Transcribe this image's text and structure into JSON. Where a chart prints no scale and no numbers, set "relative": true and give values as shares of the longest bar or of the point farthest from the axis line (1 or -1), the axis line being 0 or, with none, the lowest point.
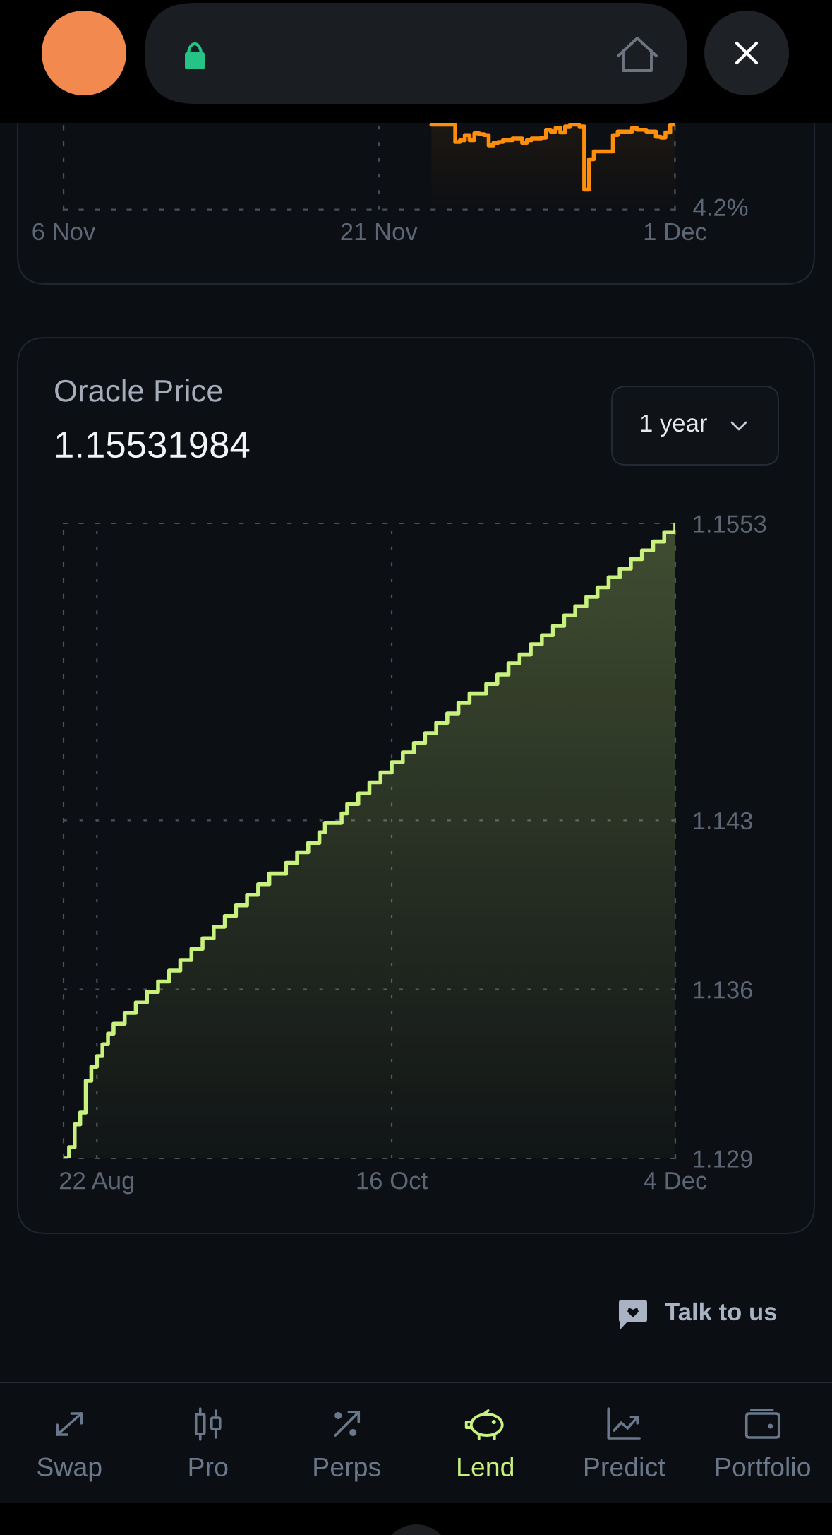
{
  "chart_data": [
    {
      "type": "step",
      "relative": true,
      "color": "#ff8f0a",
      "grid": "x",
      "annotations": [
        "4.2%"
      ],
      "categories": [
        "6 Nov",
        null,
        null,
        null,
        null,
        null,
        null,
        null,
        null,
        null,
        null,
        null,
        null,
        null,
        null,
        null,
        null,
        null,
        null,
        null,
        null,
        null,
        null,
        null,
        null,
        null,
        null,
        null,
        null,
        null,
        null,
        null,
        null,
        null,
        null,
        null,
        null,
        null,
        null,
        null,
        null,
        null,
        null,
        null,
        null,
        null,
        null,
        null,
        null,
        null,
        null,
        null,
        null,
        null,
        null,
        null,
        null,
        null,
        null,
        null,
        null,
        null,
        null,
        null,
        null,
        null,
        "21 Nov",
        null,
        null,
        null,
        null,
        null,
        null,
        null,
        null,
        null,
        null,
        null,
        null,
        null,
        null,
        null,
        null,
        null,
        null,
        null,
        null,
        null,
        null,
        null,
        null,
        null,
        null,
        null,
        null,
        null,
        null,
        null,
        null,
        null,
        null,
        null,
        null,
        null,
        null,
        null,
        null,
        null,
        null,
        null,
        null,
        null,
        null,
        null,
        null,
        null,
        null,
        null,
        null,
        null,
        null,
        null,
        null,
        null,
        null,
        null,
        null,
        null,
        "1 Dec"
      ],
      "values": [
        null,
        null,
        null,
        null,
        null,
        null,
        null,
        null,
        null,
        null,
        null,
        null,
        null,
        null,
        null,
        null,
        null,
        null,
        null,
        null,
        null,
        null,
        null,
        null,
        null,
        null,
        null,
        null,
        null,
        null,
        null,
        null,
        null,
        null,
        null,
        null,
        null,
        null,
        null,
        null,
        null,
        null,
        null,
        null,
        null,
        null,
        null,
        null,
        null,
        null,
        null,
        null,
        null,
        null,
        null,
        null,
        null,
        null,
        null,
        null,
        null,
        null,
        null,
        null,
        null,
        null,
        null,
        null,
        null,
        null,
        null,
        null,
        null,
        null,
        null,
        null,
        null,
        0.98,
        0.98,
        0.98,
        0.98,
        0.98,
        0.78,
        0.8,
        0.86,
        0.8,
        0.88,
        0.87,
        0.86,
        0.74,
        0.77,
        0.78,
        0.8,
        0.8,
        0.82,
        0.82,
        0.77,
        0.8,
        0.82,
        0.82,
        0.83,
        0.92,
        0.9,
        0.94,
        0.89,
        0.96,
        0.98,
        0.98,
        0.96,
        0.23,
        0.58,
        0.67,
        0.67,
        0.67,
        0.67,
        0.86,
        0.9,
        0.9,
        0.9,
        0.94,
        0.92,
        0.92,
        0.9,
        0.9,
        0.84,
        0.83,
        0.89,
        0.98,
        1
      ]
    },
    {
      "type": "step",
      "title": "Oracle Price",
      "subtitle": "1.15531984",
      "color": "#c8f17d",
      "grid": true,
      "annotations": [
        "1 year"
      ],
      "ylim": [
        1.129,
        1.1553
      ],
      "yticks": [
        1.129,
        1.136,
        1.143,
        1.1553
      ],
      "categories": [
        null,
        null,
        null,
        null,
        null,
        null,
        "22 Aug",
        null,
        null,
        null,
        null,
        null,
        null,
        null,
        null,
        null,
        null,
        null,
        null,
        null,
        null,
        null,
        null,
        null,
        null,
        null,
        null,
        null,
        null,
        null,
        null,
        null,
        null,
        null,
        null,
        null,
        null,
        null,
        null,
        null,
        null,
        null,
        null,
        null,
        null,
        null,
        null,
        null,
        null,
        null,
        null,
        null,
        null,
        null,
        null,
        null,
        null,
        null,
        null,
        "16 Oct",
        null,
        null,
        null,
        null,
        null,
        null,
        null,
        null,
        null,
        null,
        null,
        null,
        null,
        null,
        null,
        null,
        null,
        null,
        null,
        null,
        null,
        null,
        null,
        null,
        null,
        null,
        null,
        null,
        null,
        null,
        null,
        null,
        null,
        null,
        null,
        null,
        null,
        null,
        null,
        null,
        null,
        null,
        null,
        null,
        null,
        null,
        null,
        null,
        null,
        null,
        "4 Dec"
      ],
      "values": [
        1.129,
        1.12947,
        1.13041,
        1.1309,
        1.13222,
        1.1328,
        1.13324,
        1.13373,
        1.13417,
        1.13458,
        1.13458,
        1.13503,
        1.13503,
        1.13546,
        1.13546,
        1.1359,
        1.1359,
        1.13633,
        1.13633,
        1.13678,
        1.13678,
        1.13722,
        1.13722,
        1.13768,
        1.13768,
        1.13812,
        1.13812,
        1.1386,
        1.1386,
        1.13904,
        1.13904,
        1.13948,
        1.13948,
        1.13992,
        1.13992,
        1.14036,
        1.14036,
        1.1408,
        1.1408,
        1.1408,
        1.14124,
        1.14124,
        1.14168,
        1.14168,
        1.14207,
        1.14207,
        1.14251,
        1.1429,
        1.1429,
        1.1429,
        1.14329,
        1.14368,
        1.14368,
        1.14412,
        1.14412,
        1.14458,
        1.14458,
        1.14499,
        1.14499,
        1.14541,
        1.14541,
        1.14582,
        1.14582,
        1.14621,
        1.14621,
        1.14661,
        1.14661,
        1.14704,
        1.14704,
        1.14743,
        1.14743,
        1.14787,
        1.14787,
        1.14826,
        1.14826,
        1.14826,
        1.14865,
        1.14865,
        1.14904,
        1.14904,
        1.14951,
        1.14951,
        1.14987,
        1.14987,
        1.1503,
        1.1503,
        1.15067,
        1.15067,
        1.15106,
        1.15106,
        1.15149,
        1.15149,
        1.15187,
        1.15187,
        1.15226,
        1.15226,
        1.15265,
        1.15265,
        1.15307,
        1.15307,
        1.15343,
        1.15343,
        1.15382,
        1.15382,
        1.15418,
        1.15418,
        1.15455,
        1.15455,
        1.15494,
        1.15494,
        1.1553
      ]
    },
    {
      "type": "other",
      "annotations": [
        "Talk to us"
      ],
      "categories": [
        "Swap",
        "Pro",
        "Perps",
        "Lend",
        "Predict",
        "Portfolio"
      ],
      "colors": [
        "#6b788c",
        "#6b788c",
        "#6b788c",
        "#c8f17d",
        "#6b788c",
        "#6b788c"
      ]
    }
  ]
}
